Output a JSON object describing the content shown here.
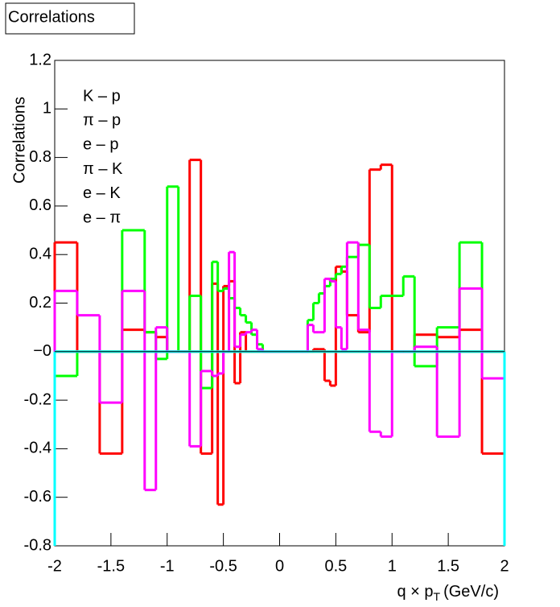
{
  "chart_data": {
    "type": "histogram",
    "title": "Correlations",
    "y_label": "Correlations",
    "x_label": {
      "main": "q × p",
      "sub": "T",
      "unit": "(GeV/c)"
    },
    "bins": [
      -2,
      -1.8,
      -1.6,
      -1.4,
      -1.2,
      -1.1,
      -1,
      -0.9,
      -0.8,
      -0.7,
      -0.6,
      -0.55,
      -0.5,
      -0.45,
      -0.4,
      -0.35,
      -0.3,
      -0.25,
      -0.2,
      -0.15,
      0.15,
      0.2,
      0.25,
      0.3,
      0.35,
      0.4,
      0.45,
      0.5,
      0.55,
      0.6,
      0.7,
      0.8,
      0.9,
      1,
      1.1,
      1.2,
      1.4,
      1.6,
      1.8,
      2
    ],
    "series": [
      {
        "name": "K – p",
        "color": "#ff0000",
        "values": [
          0.45,
          0,
          -0.42,
          0.09,
          0.08,
          0.06,
          0,
          0,
          0.79,
          -0.42,
          0.28,
          -0.63,
          0.27,
          0.29,
          -0.13,
          0.08,
          0,
          0,
          0,
          0,
          0,
          0,
          0,
          0.01,
          0.01,
          -0.12,
          -0.14,
          0.35,
          0.33,
          0.15,
          0.08,
          0.75,
          0.77,
          0,
          0,
          0.07,
          0.06,
          0.09,
          -0.42
        ]
      },
      {
        "name": "π – p",
        "color": "#00ff00",
        "values": [
          -0.1,
          0,
          0,
          0.5,
          0.08,
          -0.03,
          0.68,
          0,
          0.23,
          -0.15,
          0.37,
          0.25,
          0.26,
          0.22,
          0.18,
          0.15,
          0.12,
          0.07,
          0.03,
          0,
          0,
          0,
          0.13,
          0.2,
          0.24,
          0.27,
          0.3,
          0.32,
          0.35,
          0.39,
          0.44,
          0.18,
          0.23,
          0.23,
          0.31,
          -0.06,
          0.1,
          0.45,
          0
        ]
      },
      {
        "name": "e – p",
        "color": "#0000ff",
        "values": [
          0,
          0,
          0,
          0,
          0,
          0,
          0,
          0,
          0,
          0,
          0,
          0,
          0,
          0,
          0,
          0,
          0,
          0,
          0,
          0,
          0,
          0,
          0,
          0,
          0,
          0,
          0,
          0,
          0,
          0,
          0,
          0,
          0,
          0,
          0,
          0,
          0,
          0,
          0
        ]
      },
      {
        "name": "π – K",
        "color": "#ffff00",
        "values": [
          0,
          0,
          0,
          0,
          0,
          0,
          0,
          0,
          0,
          0,
          0,
          0,
          0,
          0,
          0,
          0,
          0,
          0,
          0,
          0,
          0,
          0,
          0,
          0,
          0,
          0,
          0,
          0,
          0,
          0,
          0,
          0,
          0,
          0,
          0,
          0,
          0,
          0,
          0
        ]
      },
      {
        "name": "e – K",
        "color": "#ff00ff",
        "values": [
          0.25,
          0.15,
          -0.21,
          0.25,
          -0.57,
          0.1,
          0,
          0,
          -0.39,
          -0.08,
          -0.1,
          -0.09,
          0,
          0.41,
          0.02,
          0.07,
          0.08,
          0.09,
          0.01,
          0,
          0,
          0,
          0.11,
          0.08,
          0.08,
          0.3,
          0.29,
          0.1,
          0.01,
          0.45,
          0.09,
          -0.33,
          -0.35,
          0,
          0,
          0.02,
          -0.35,
          0.26,
          -0.11
        ]
      },
      {
        "name": "e – π",
        "color": "#00ffff",
        "values": [
          0,
          0,
          0,
          0,
          0,
          0,
          0,
          0,
          0,
          0,
          0,
          0,
          0,
          0,
          0,
          0,
          0,
          0,
          0,
          0,
          0,
          0,
          0,
          0,
          0,
          0,
          0,
          0,
          0,
          0,
          0,
          0,
          0,
          0,
          0,
          0,
          0,
          0,
          0
        ]
      }
    ],
    "xlim": [
      -2,
      2
    ],
    "ylim": [
      -0.8,
      1.2
    ],
    "xticks": [
      -2,
      -1.5,
      -1,
      -0.5,
      0,
      0.5,
      1,
      1.5,
      2
    ],
    "yticks": [
      -0.8,
      -0.6,
      -0.4,
      -0.2,
      {
        "value": 0,
        "label": "−0"
      },
      0.2,
      0.4,
      0.6,
      0.8,
      1,
      1.2
    ]
  }
}
